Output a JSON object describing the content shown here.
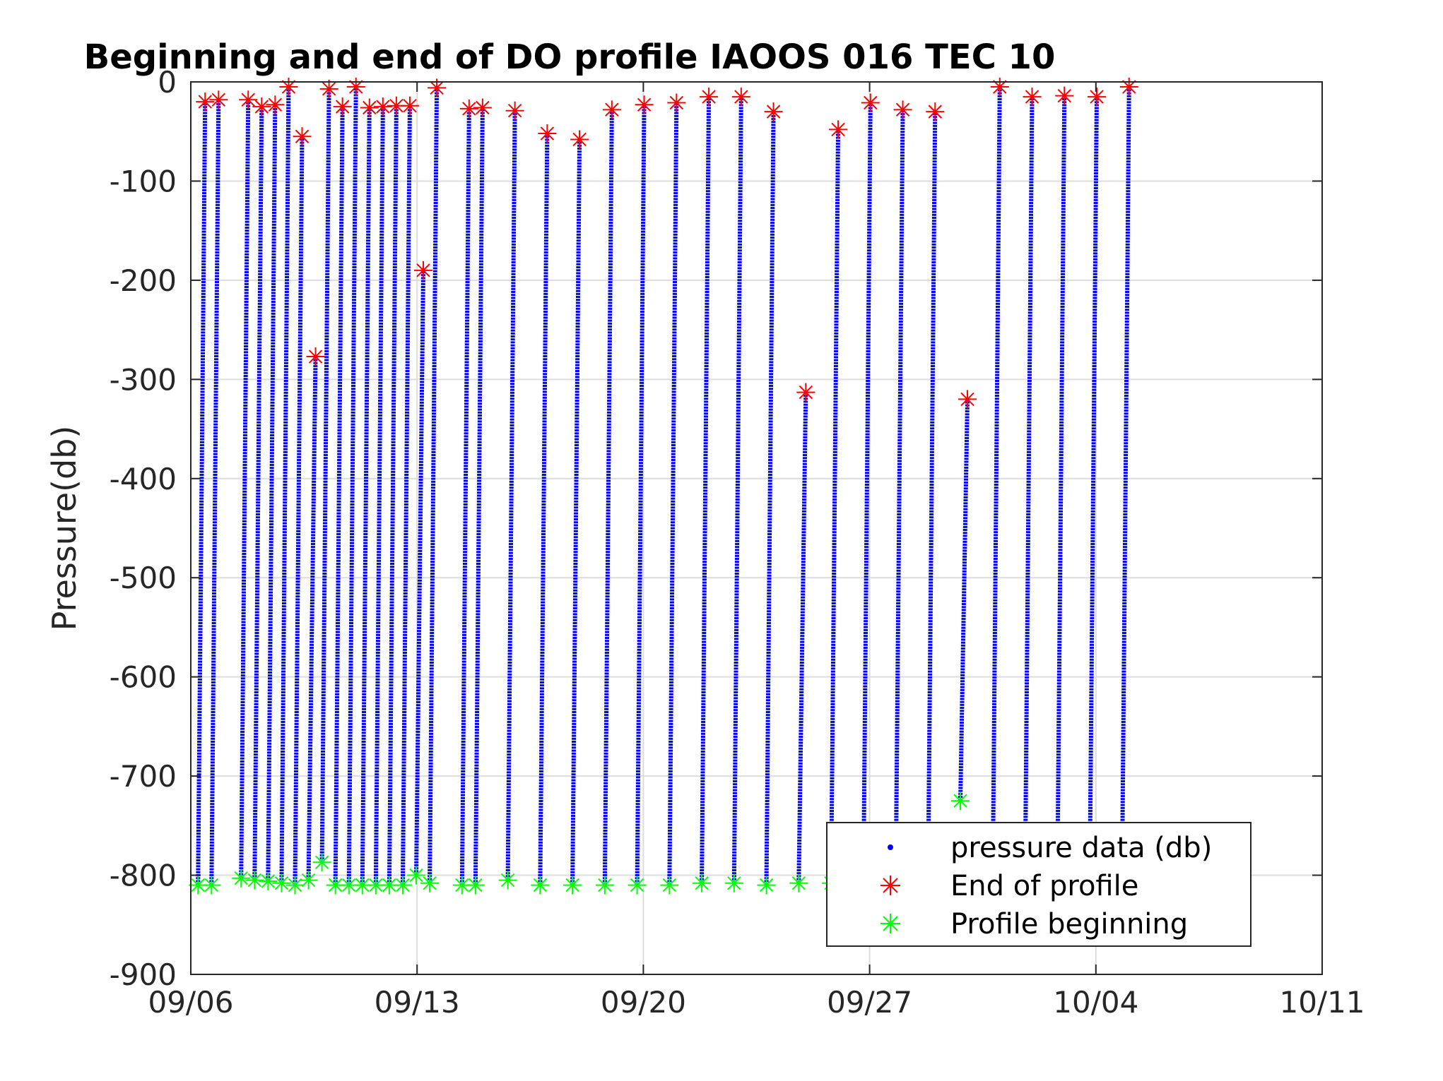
{
  "chart_data": {
    "type": "scatter",
    "title": "Beginning and end of DO profile IAOOS 016 TEC 10",
    "xlabel": "",
    "ylabel": "Pressure(db)",
    "x_axis": {
      "type": "date",
      "ticks": [
        "09/06",
        "09/13",
        "09/20",
        "09/27",
        "10/04",
        "10/11"
      ],
      "tick_dates": [
        "09-06",
        "09-13",
        "09-20",
        "09-27",
        "10-04",
        "10-11"
      ]
    },
    "ylim": [
      -900,
      0
    ],
    "y_ticks": [
      "0",
      "-100",
      "-200",
      "-300",
      "-400",
      "-500",
      "-600",
      "-700",
      "-800",
      "-900"
    ],
    "grid": true,
    "legend_position": "bottom-right",
    "colors": {
      "pressure": "#0000ff",
      "end": "#ff0000",
      "begin": "#00ff00",
      "grid": "#dcdcdc",
      "axis": "#262626"
    },
    "series": [
      {
        "name": "pressure data (db)",
        "marker": "dot"
      },
      {
        "name": "End of profile",
        "marker": "asterisk"
      },
      {
        "name": "Profile beginning",
        "marker": "asterisk"
      }
    ],
    "profiles": [
      {
        "date": "09-06 08:00",
        "begin": -810,
        "end": -20
      },
      {
        "date": "09-06 18:00",
        "begin": -810,
        "end": -18
      },
      {
        "date": "09-07 16:00",
        "begin": -803,
        "end": -18
      },
      {
        "date": "09-08 02:00",
        "begin": -805,
        "end": -25
      },
      {
        "date": "09-08 12:00",
        "begin": -806,
        "end": -23
      },
      {
        "date": "09-08 22:00",
        "begin": -808,
        "end": -5
      },
      {
        "date": "09-09 08:00",
        "begin": -810,
        "end": -55
      },
      {
        "date": "09-09 18:00",
        "begin": -805,
        "end": -277
      },
      {
        "date": "09-10 04:00",
        "begin": -787,
        "end": -7
      },
      {
        "date": "09-10 14:00",
        "begin": -810,
        "end": -25
      },
      {
        "date": "09-11 00:00",
        "begin": -810,
        "end": -5
      },
      {
        "date": "09-11 10:00",
        "begin": -810,
        "end": -26
      },
      {
        "date": "09-11 20:00",
        "begin": -810,
        "end": -25
      },
      {
        "date": "09-12 06:00",
        "begin": -810,
        "end": -24
      },
      {
        "date": "09-12 16:00",
        "begin": -810,
        "end": -24
      },
      {
        "date": "09-13 02:00",
        "begin": -800,
        "end": -190
      },
      {
        "date": "09-13 12:00",
        "begin": -808,
        "end": -6
      },
      {
        "date": "09-14 12:00",
        "begin": -810,
        "end": -27
      },
      {
        "date": "09-14 22:00",
        "begin": -810,
        "end": -26
      },
      {
        "date": "09-15 22:00",
        "begin": -805,
        "end": -29
      },
      {
        "date": "09-16 22:00",
        "begin": -810,
        "end": -52
      },
      {
        "date": "09-17 22:00",
        "begin": -810,
        "end": -58
      },
      {
        "date": "09-18 22:00",
        "begin": -810,
        "end": -28
      },
      {
        "date": "09-19 22:00",
        "begin": -810,
        "end": -23
      },
      {
        "date": "09-20 22:00",
        "begin": -810,
        "end": -21
      },
      {
        "date": "09-21 22:00",
        "begin": -808,
        "end": -15
      },
      {
        "date": "09-22 22:00",
        "begin": -808,
        "end": -15
      },
      {
        "date": "09-23 22:00",
        "begin": -810,
        "end": -30
      },
      {
        "date": "09-24 22:00",
        "begin": -808,
        "end": -313
      },
      {
        "date": "09-25 22:00",
        "begin": -808,
        "end": -48
      },
      {
        "date": "09-26 22:00",
        "begin": -808,
        "end": -21
      },
      {
        "date": "09-27 22:00",
        "begin": -808,
        "end": -28
      },
      {
        "date": "09-28 22:00",
        "begin": -808,
        "end": -30
      },
      {
        "date": "09-29 22:00",
        "begin": -725,
        "end": -320
      },
      {
        "date": "09-30 22:00",
        "begin": -808,
        "end": -5
      },
      {
        "date": "10-01 22:00",
        "begin": -808,
        "end": -15
      },
      {
        "date": "10-02 22:00",
        "begin": -808,
        "end": -14
      },
      {
        "date": "10-03 22:00",
        "begin": -808,
        "end": -15
      },
      {
        "date": "10-04 22:00",
        "begin": -808,
        "end": -5
      }
    ]
  }
}
